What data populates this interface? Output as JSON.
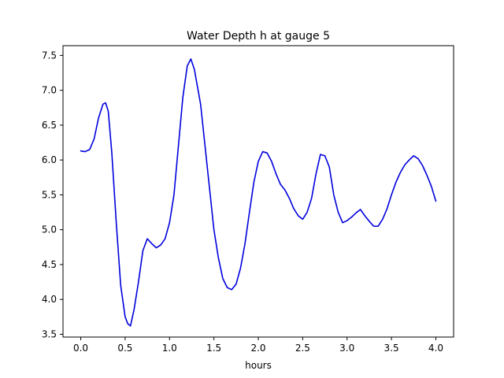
{
  "chart_data": {
    "type": "line",
    "title": "Water Depth h at gauge 5",
    "xlabel": "hours",
    "ylabel": "",
    "xlim": [
      -0.2,
      4.2
    ],
    "ylim": [
      3.46,
      7.64
    ],
    "xticks": [
      0.0,
      0.5,
      1.0,
      1.5,
      2.0,
      2.5,
      3.0,
      3.5,
      4.0
    ],
    "xtick_labels": [
      "0.0",
      "0.5",
      "1.0",
      "1.5",
      "2.0",
      "2.5",
      "3.0",
      "3.5",
      "4.0"
    ],
    "yticks": [
      3.5,
      4.0,
      4.5,
      5.0,
      5.5,
      6.0,
      6.5,
      7.0,
      7.5
    ],
    "ytick_labels": [
      "3.5",
      "4.0",
      "4.5",
      "5.0",
      "5.5",
      "6.0",
      "6.5",
      "7.0",
      "7.5"
    ],
    "grid": false,
    "legend": "none",
    "series": [
      {
        "color": "#0000dd",
        "x": [
          0.0,
          0.05,
          0.1,
          0.15,
          0.2,
          0.25,
          0.28,
          0.31,
          0.35,
          0.4,
          0.45,
          0.5,
          0.53,
          0.56,
          0.6,
          0.65,
          0.7,
          0.75,
          0.8,
          0.85,
          0.9,
          0.95,
          1.0,
          1.05,
          1.1,
          1.15,
          1.2,
          1.24,
          1.28,
          1.35,
          1.4,
          1.45,
          1.5,
          1.55,
          1.6,
          1.65,
          1.7,
          1.75,
          1.8,
          1.85,
          1.9,
          1.95,
          2.0,
          2.05,
          2.1,
          2.15,
          2.2,
          2.25,
          2.3,
          2.35,
          2.4,
          2.45,
          2.5,
          2.55,
          2.6,
          2.65,
          2.7,
          2.75,
          2.8,
          2.85,
          2.9,
          2.95,
          3.0,
          3.05,
          3.1,
          3.15,
          3.2,
          3.25,
          3.3,
          3.35,
          3.4,
          3.45,
          3.5,
          3.55,
          3.6,
          3.65,
          3.7,
          3.75,
          3.8,
          3.85,
          3.9,
          3.95,
          4.0
        ],
        "y": [
          6.13,
          6.12,
          6.15,
          6.3,
          6.6,
          6.8,
          6.82,
          6.7,
          6.1,
          5.1,
          4.2,
          3.75,
          3.65,
          3.62,
          3.85,
          4.25,
          4.7,
          4.87,
          4.8,
          4.74,
          4.78,
          4.87,
          5.1,
          5.5,
          6.2,
          6.9,
          7.35,
          7.45,
          7.3,
          6.8,
          6.2,
          5.6,
          5.0,
          4.6,
          4.3,
          4.17,
          4.14,
          4.22,
          4.45,
          4.8,
          5.25,
          5.68,
          5.98,
          6.12,
          6.1,
          5.98,
          5.8,
          5.65,
          5.57,
          5.45,
          5.3,
          5.2,
          5.15,
          5.25,
          5.45,
          5.8,
          6.08,
          6.06,
          5.9,
          5.5,
          5.25,
          5.1,
          5.13,
          5.18,
          5.24,
          5.29,
          5.2,
          5.12,
          5.05,
          5.05,
          5.15,
          5.3,
          5.5,
          5.68,
          5.82,
          5.93,
          6.0,
          6.06,
          6.02,
          5.92,
          5.78,
          5.62,
          5.41
        ]
      }
    ]
  }
}
